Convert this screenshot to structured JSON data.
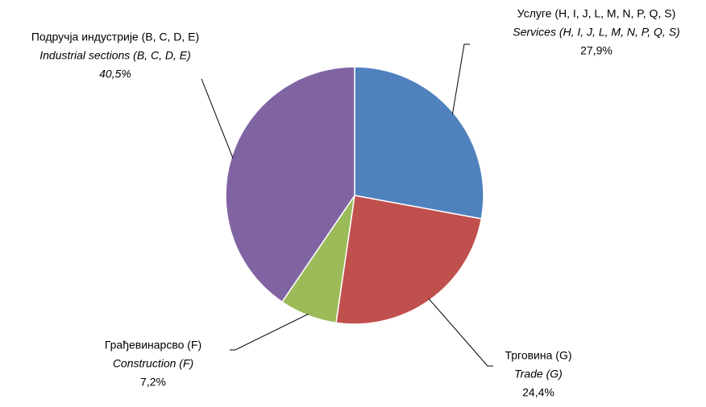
{
  "chart_data": {
    "type": "pie",
    "categories": [
      "Услуге (H, I, J, L, M, N, P, Q, S)",
      "Трговина (G)",
      "Грађевинарсво (F)",
      "Подручја индустрије (B, C, D, E)"
    ],
    "categories_en": [
      "Services (H, I, J, L, M, N, P, Q, S)",
      "Trade (G)",
      "Construction (F)",
      "Industrial sections (B, C, D, E)"
    ],
    "values": [
      27.9,
      24.4,
      7.2,
      40.5
    ],
    "value_labels": [
      "27,9%",
      "24,4%",
      "7,2%",
      "40,5%"
    ],
    "colors": [
      "#4f81bd",
      "#c0504d",
      "#9bbb59",
      "#8064a2"
    ]
  }
}
